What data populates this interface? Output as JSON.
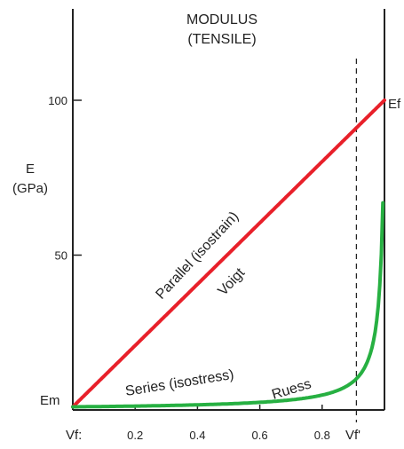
{
  "chart_data": {
    "type": "line",
    "title_lines": [
      "MODULUS",
      "(TENSILE)"
    ],
    "ylabel_lines": [
      "E",
      "(GPa)"
    ],
    "xlabel_left": "Vf:",
    "xlabel_right": "Vf'",
    "xlim": [
      0,
      1
    ],
    "ylim": [
      0,
      100
    ],
    "x_ticks": [
      {
        "value": 0.2,
        "label": "0.2"
      },
      {
        "value": 0.4,
        "label": "0.4"
      },
      {
        "value": 0.6,
        "label": "0.6"
      },
      {
        "value": 0.8,
        "label": "0.8"
      }
    ],
    "y_ticks": [
      {
        "value": 50,
        "label": "50"
      },
      {
        "value": 100,
        "label": "100"
      }
    ],
    "endpoint_labels": {
      "left": "Em",
      "right": "Ef"
    },
    "vertical_marker": {
      "x": 0.91
    },
    "Em": 1,
    "Ef": 100,
    "series": [
      {
        "name": "Parallel (isostrain)",
        "alt_name": "Voigt",
        "model": "voigt",
        "color": "#e8202a"
      },
      {
        "name": "Series (isostress)",
        "alt_name": "Ruess",
        "model": "reuss",
        "color": "#27b042"
      }
    ]
  }
}
